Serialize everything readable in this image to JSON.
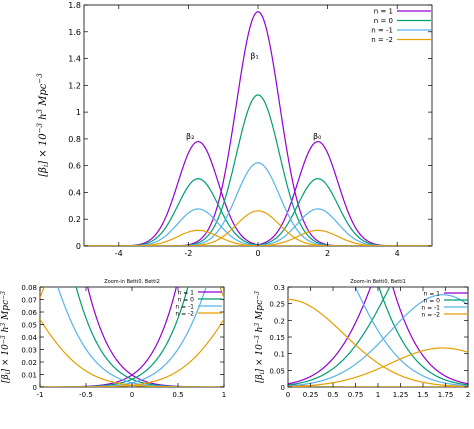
{
  "colors": [
    "#9400d3",
    "#009e73",
    "#56b4e9",
    "#e69f00"
  ],
  "chart_data": [
    {
      "type": "line",
      "title": "",
      "ylabel": "[β_i] × 10^-3 h^3 Mpc^-3",
      "xlim": [
        -5,
        5
      ],
      "ylim": [
        0,
        1.8
      ],
      "xticks": [
        "-4",
        "-2",
        "0",
        "2",
        "4"
      ],
      "yticks": [
        "0",
        "0.2",
        "0.4",
        "0.6",
        "0.8",
        "1",
        "1.2",
        "1.4",
        "1.6",
        "1.8"
      ],
      "legend_position": "top-right",
      "annotations": [
        {
          "text": "β₁",
          "x": -0.1,
          "y": 1.4
        },
        {
          "text": "β₂",
          "x": -1.95,
          "y": 0.8
        },
        {
          "text": "β₀",
          "x": 1.7,
          "y": 0.8
        }
      ],
      "series": [
        {
          "name": "n = 1",
          "peaks": {
            "beta1": 1.75,
            "beta2": 0.78,
            "beta0": 0.78
          }
        },
        {
          "name": "n = 0",
          "peaks": {
            "beta1": 1.13,
            "beta2": 0.48,
            "beta0": 0.48
          }
        },
        {
          "name": "n = -1",
          "peaks": {
            "beta1": 0.62,
            "beta2": 0.28,
            "beta0": 0.28
          }
        },
        {
          "name": "n = -2",
          "peaks": {
            "beta1": 0.26,
            "beta2": 0.12,
            "beta0": 0.12
          }
        }
      ]
    },
    {
      "type": "line",
      "title": "Zoom-in Betti0, Betti2",
      "ylabel": "[β_i] × 10^-3 h^3 Mpc^-3",
      "xlim": [
        -1,
        1
      ],
      "ylim": [
        0,
        0.08
      ],
      "xticks": [
        "-1",
        "-0.5",
        "0",
        "0.5",
        "1"
      ],
      "yticks": [
        "0",
        "0.01",
        "0.02",
        "0.03",
        "0.04",
        "0.05",
        "0.06",
        "0.07",
        "0.08"
      ],
      "legend_position": "top-right",
      "series": [
        {
          "name": "n = 1"
        },
        {
          "name": "n = 0"
        },
        {
          "name": "n = -1"
        },
        {
          "name": "n = -2"
        }
      ]
    },
    {
      "type": "line",
      "title": "Zoom-in Betti0, Betti1",
      "ylabel": "[β_i] × 10^-3 h^3 Mpc^-3",
      "xlim": [
        0,
        2
      ],
      "ylim": [
        0,
        0.3
      ],
      "xticks": [
        "0",
        "0.25",
        "0.5",
        "0.75",
        "1",
        "1.25",
        "1.5",
        "1.75",
        "2"
      ],
      "yticks": [
        "0",
        "0.05",
        "0.1",
        "0.15",
        "0.2",
        "0.25",
        "0.3"
      ],
      "legend_position": "top-right",
      "series": [
        {
          "name": "n = 1"
        },
        {
          "name": "n = 0"
        },
        {
          "name": "n = -1"
        },
        {
          "name": "n = -2"
        }
      ]
    }
  ]
}
